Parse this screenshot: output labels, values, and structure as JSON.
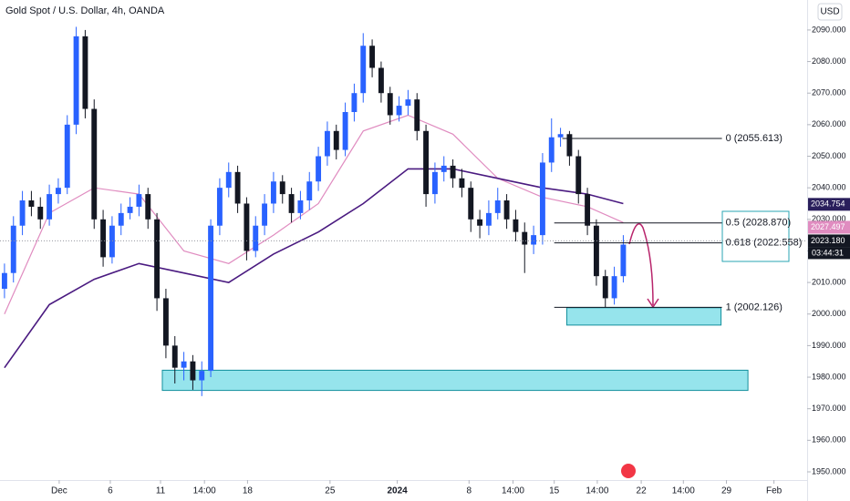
{
  "chart_data": {
    "type": "candlestick",
    "title": "Gold Spot / U.S. Dollar, 4h, OANDA",
    "currency": "USD",
    "up_color": "#2962ff",
    "down_color": "#131722",
    "xlim": [
      -0.5,
      89.5
    ],
    "ylim": [
      1947.4,
      2099.5
    ],
    "grid": false,
    "x": [
      0,
      1,
      2,
      3,
      4,
      5,
      6,
      7,
      8,
      9,
      10,
      11,
      12,
      13,
      14,
      15,
      16,
      17,
      18,
      19,
      20,
      21,
      22,
      23,
      24,
      25,
      26,
      27,
      28,
      29,
      30,
      31,
      32,
      33,
      34,
      35,
      36,
      37,
      38,
      39,
      40,
      41,
      42,
      43,
      44,
      45,
      46,
      47,
      48,
      49,
      50,
      51,
      52,
      53,
      54,
      55,
      56,
      57,
      58,
      59,
      60,
      61,
      62,
      63,
      64,
      65,
      66,
      67,
      68,
      69
    ],
    "open": [
      2008,
      2013,
      2028,
      2036,
      2034,
      2030,
      2038,
      2040,
      2060,
      2088,
      2065,
      2030,
      2018,
      2028,
      2032,
      2034,
      2038,
      2030,
      2005,
      1990,
      1983,
      1985,
      1979,
      1982,
      2028,
      2040,
      2045,
      2035,
      2020,
      2028,
      2035,
      2042,
      2038,
      2032,
      2036,
      2042,
      2050,
      2058,
      2052,
      2064,
      2070,
      2085,
      2078,
      2070,
      2063,
      2066,
      2068,
      2058,
      2038,
      2045,
      2047,
      2043,
      2040,
      2030,
      2028,
      2032,
      2036,
      2030,
      2026,
      2022,
      2025,
      2048,
      2056,
      2057,
      2050,
      2038,
      2028,
      2012,
      2005,
      2012
    ],
    "high": [
      2016,
      2031,
      2039,
      2039,
      2037,
      2041,
      2043,
      2063,
      2091,
      2090,
      2068,
      2033,
      2031,
      2035,
      2037,
      2041,
      2040,
      2032,
      2008,
      1993,
      1988,
      1987,
      1985,
      2030,
      2043,
      2048,
      2047,
      2037,
      2031,
      2038,
      2045,
      2044,
      2040,
      2039,
      2045,
      2053,
      2061,
      2060,
      2067,
      2073,
      2089,
      2087,
      2080,
      2072,
      2069,
      2071,
      2070,
      2060,
      2048,
      2050,
      2049,
      2046,
      2042,
      2033,
      2036,
      2040,
      2038,
      2033,
      2029,
      2028,
      2051,
      2062,
      2059,
      2058,
      2052,
      2040,
      2030,
      2014,
      2015,
      2025
    ],
    "low": [
      2005,
      2010,
      2025,
      2031,
      2027,
      2028,
      2035,
      2038,
      2057,
      2062,
      2027,
      2015,
      2016,
      2025,
      2030,
      2031,
      2027,
      2001,
      1986,
      1978,
      1979,
      1976,
      1974,
      1980,
      2025,
      2037,
      2032,
      2017,
      2018,
      2025,
      2032,
      2035,
      2029,
      2030,
      2033,
      2039,
      2047,
      2049,
      2050,
      2061,
      2067,
      2075,
      2067,
      2060,
      2061,
      2063,
      2055,
      2034,
      2035,
      2042,
      2040,
      2037,
      2026,
      2024,
      2025,
      2030,
      2027,
      2023,
      2013,
      2019,
      2022,
      2045,
      2053,
      2047,
      2035,
      2025,
      2009,
      2002,
      2003,
      2010
    ],
    "close": [
      2013,
      2028,
      2036,
      2034,
      2030,
      2038,
      2040,
      2060,
      2088,
      2065,
      2030,
      2018,
      2028,
      2032,
      2034,
      2038,
      2030,
      2005,
      1990,
      1983,
      1985,
      1979,
      1982,
      2028,
      2040,
      2045,
      2035,
      2020,
      2028,
      2035,
      2042,
      2038,
      2032,
      2036,
      2042,
      2050,
      2058,
      2052,
      2064,
      2070,
      2085,
      2078,
      2070,
      2063,
      2066,
      2068,
      2058,
      2038,
      2045,
      2047,
      2043,
      2040,
      2030,
      2028,
      2032,
      2036,
      2030,
      2026,
      2022,
      2025,
      2048,
      2056,
      2057,
      2050,
      2038,
      2028,
      2012,
      2005,
      2012,
      2022
    ],
    "lines": [
      {
        "color": "#e08cc0",
        "x": [
          0,
          5,
          10,
          15,
          20,
          25,
          30,
          35,
          40,
          45,
          50,
          55,
          60,
          65,
          69
        ],
        "values": [
          2000,
          2032,
          2040,
          2038,
          2020,
          2016,
          2025,
          2035,
          2058,
          2063,
          2057,
          2043,
          2037,
          2034,
          2029
        ]
      },
      {
        "color": "#4a1a80",
        "x": [
          0,
          5,
          10,
          15,
          20,
          25,
          30,
          35,
          40,
          45,
          50,
          55,
          60,
          65,
          69
        ],
        "values": [
          1983,
          2003,
          2011,
          2016,
          2013,
          2010,
          2019,
          2026,
          2035,
          2046,
          2046,
          2043,
          2040,
          2038,
          2035
        ]
      }
    ],
    "zones": [
      {
        "x": [
          17.6,
          82.9
        ],
        "y": [
          1975.8,
          1982.2
        ]
      },
      {
        "x": [
          62.7,
          79.9
        ],
        "y": [
          1996.5,
          2002
        ]
      }
    ],
    "fib": [
      {
        "x": [
          62.2,
          80
        ],
        "price": 2055.613,
        "label": "0 (2055.613)"
      },
      {
        "x": [
          61.3,
          80
        ],
        "price": 2028.87,
        "label": "0.5 (2028.870)"
      },
      {
        "x": [
          61.3,
          80
        ],
        "price": 2022.558,
        "label": "0.618 (2022.558)"
      },
      {
        "x": [
          61.3,
          80
        ],
        "price": 2002.126,
        "label": "1 (2002.126)"
      }
    ],
    "yticks": [
      {
        "value": 1950,
        "label": "1950.000"
      },
      {
        "value": 1960,
        "label": "1960.000"
      },
      {
        "value": 1970,
        "label": "1970.000"
      },
      {
        "value": 1980,
        "label": "1980.000"
      },
      {
        "value": 1990,
        "label": "1990.000"
      },
      {
        "value": 2000,
        "label": "2000.000"
      },
      {
        "value": 2010,
        "label": "2010.000"
      },
      {
        "value": 2020,
        "label": "2020.000"
      },
      {
        "value": 2030,
        "label": "2030.000"
      },
      {
        "value": 2040,
        "label": "2040.000"
      },
      {
        "value": 2050,
        "label": "2050.000"
      },
      {
        "value": 2060,
        "label": "2060.000"
      },
      {
        "value": 2070,
        "label": "2070.000"
      },
      {
        "value": 2080,
        "label": "2080.000"
      },
      {
        "value": 2090,
        "label": "2090.000"
      }
    ],
    "xticks": [
      {
        "value": 6.1,
        "label": "Dec"
      },
      {
        "value": 11.8,
        "label": "6"
      },
      {
        "value": 17.4,
        "label": "11"
      },
      {
        "value": 22.3,
        "label": "14:00"
      },
      {
        "value": 27.1,
        "label": "18"
      },
      {
        "value": 36.3,
        "label": "25"
      },
      {
        "value": 43.8,
        "label": "2024"
      },
      {
        "value": 51.8,
        "label": "8"
      },
      {
        "value": 56.7,
        "label": "14:00"
      },
      {
        "value": 61.3,
        "label": "15"
      },
      {
        "value": 66.1,
        "label": "14:00"
      },
      {
        "value": 71.0,
        "label": "22"
      },
      {
        "value": 75.7,
        "label": "14:00"
      },
      {
        "value": 80.5,
        "label": "29"
      },
      {
        "value": 85.8,
        "label": "Feb"
      }
    ],
    "price_tags": [
      {
        "value": 2034.754,
        "label": "2034.754",
        "color": "#2a1f5c"
      },
      {
        "value": 2027.497,
        "label": "2027.497",
        "color": "#e08cc0"
      },
      {
        "value": 2023.18,
        "label": "2023.180",
        "color": "#131722"
      }
    ],
    "countdown": "03:44:31"
  }
}
